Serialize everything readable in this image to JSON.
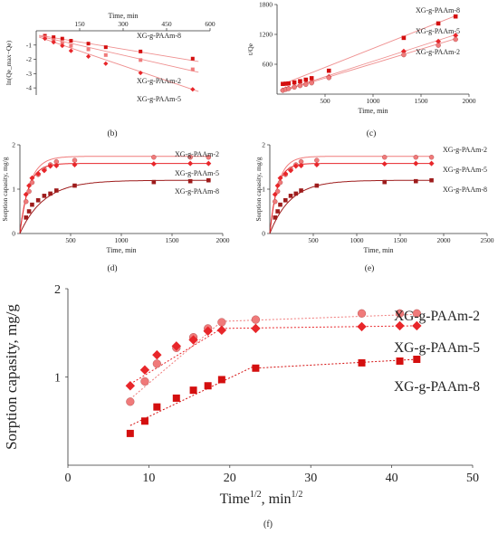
{
  "colors": {
    "s2": "#f07a7a",
    "s5": "#e8262a",
    "s8": "#d40f0f",
    "s8dark": "#9e1c1c",
    "fit": "#ef9090",
    "axis": "#333333"
  },
  "chart_data": [
    {
      "id": "b",
      "type": "scatter",
      "panel_label": "(b)",
      "xlabel": "Time, min",
      "ylabel": "ln(Qe_max−Qe)",
      "xlim": [
        0,
        600
      ],
      "ylim": [
        -4.5,
        0
      ],
      "xticks": [
        150,
        300,
        450,
        600
      ],
      "yticks": [
        -1,
        -2,
        -3,
        -4
      ],
      "x_axis_position": "top",
      "series": [
        {
          "name": "XG-g-PAAm-8",
          "marker": "square",
          "x": [
            30,
            60,
            90,
            120,
            180,
            240,
            360,
            540
          ],
          "y": [
            -0.35,
            -0.45,
            -0.55,
            -0.7,
            -0.9,
            -1.15,
            -1.45,
            -1.95
          ],
          "fit": [
            [
              10,
              -0.32
            ],
            [
              560,
              -2.15
            ]
          ]
        },
        {
          "name": "XG-g-PAAm-2",
          "marker": "square",
          "x": [
            30,
            60,
            90,
            120,
            180,
            240,
            360,
            540
          ],
          "y": [
            -0.45,
            -0.65,
            -0.85,
            -1.05,
            -1.3,
            -1.7,
            -2.05,
            -2.7
          ],
          "fit": [
            [
              10,
              -0.38
            ],
            [
              560,
              -2.9
            ]
          ]
        },
        {
          "name": "XG-g-PAAm-5",
          "marker": "diamond",
          "x": [
            30,
            60,
            90,
            120,
            180,
            240,
            360,
            540
          ],
          "y": [
            -0.55,
            -0.8,
            -1.05,
            -1.4,
            -1.8,
            -2.3,
            -2.95,
            -4.1
          ],
          "fit": [
            [
              10,
              -0.45
            ],
            [
              560,
              -4.25
            ]
          ]
        }
      ],
      "labels": [
        "XG-g-PAAm-8",
        "XG-g-PAAm-2",
        "XG-g-PAAm-5"
      ]
    },
    {
      "id": "c",
      "type": "scatter",
      "panel_label": "(c)",
      "xlabel": "Time, min",
      "ylabel": "t/Qe",
      "xlim": [
        0,
        2000
      ],
      "ylim": [
        0,
        1800
      ],
      "xticks": [
        500,
        1000,
        1500,
        2000
      ],
      "yticks": [
        600,
        1200,
        1800
      ],
      "series": [
        {
          "name": "XG-g-PAAm-8",
          "marker": "square",
          "x": [
            60,
            90,
            120,
            180,
            240,
            300,
            360,
            540,
            1320,
            1680,
            1860
          ],
          "y": [
            205,
            210,
            215,
            235,
            260,
            290,
            320,
            470,
            1130,
            1420,
            1560
          ],
          "fit": [
            [
              50,
              195
            ],
            [
              1870,
              1580
            ]
          ]
        },
        {
          "name": "XG-g-PAAm-5",
          "marker": "diamond",
          "x": [
            60,
            90,
            120,
            180,
            240,
            300,
            360,
            540,
            1320,
            1680,
            1860
          ],
          "y": [
            80,
            100,
            115,
            150,
            185,
            210,
            240,
            350,
            860,
            1060,
            1180
          ],
          "fit": [
            [
              50,
              70
            ],
            [
              1870,
              1200
            ]
          ]
        },
        {
          "name": "XG-g-PAAm-2",
          "marker": "circle",
          "x": [
            60,
            90,
            120,
            180,
            240,
            300,
            360,
            540,
            1320,
            1680,
            1860
          ],
          "y": [
            75,
            95,
            110,
            140,
            170,
            195,
            225,
            330,
            790,
            980,
            1100
          ],
          "fit": [
            [
              50,
              60
            ],
            [
              1870,
              1120
            ]
          ]
        }
      ],
      "labels": [
        "XG-g-PAAm-8",
        "XG-g-PAAm-5",
        "XG-g-PAAm-2"
      ]
    },
    {
      "id": "d",
      "type": "scatter",
      "panel_label": "(d)",
      "xlabel": "Time, min",
      "ylabel": "Sorption capasity, mg/g",
      "xlim": [
        0,
        2000
      ],
      "ylim": [
        0,
        2
      ],
      "xticks": [
        500,
        1000,
        1500,
        2000
      ],
      "yticks": [
        0,
        1,
        2
      ],
      "series": [
        {
          "name": "XG-g-PAAm-2",
          "marker": "circle",
          "x": [
            60,
            90,
            120,
            180,
            240,
            300,
            360,
            540,
            1320,
            1680,
            1860
          ],
          "y": [
            0.72,
            0.95,
            1.15,
            1.33,
            1.45,
            1.55,
            1.62,
            1.65,
            1.72,
            1.72,
            1.72
          ],
          "fit_k": 0.0105,
          "fit_max": 1.74
        },
        {
          "name": "XG-g-PAAm-5",
          "marker": "diamond",
          "x": [
            60,
            90,
            120,
            180,
            240,
            300,
            360,
            540,
            1320,
            1680,
            1860
          ],
          "y": [
            0.88,
            1.08,
            1.25,
            1.35,
            1.42,
            1.52,
            1.53,
            1.55,
            1.57,
            1.58,
            1.58
          ],
          "fit_k": 0.012,
          "fit_max": 1.58
        },
        {
          "name": "XG-g-PAAm-8",
          "marker": "square",
          "x": [
            60,
            90,
            120,
            180,
            240,
            300,
            360,
            540,
            1320,
            1680,
            1860
          ],
          "y": [
            0.36,
            0.5,
            0.65,
            0.75,
            0.85,
            0.9,
            0.97,
            1.08,
            1.16,
            1.18,
            1.2
          ],
          "fit_k": 0.0042,
          "fit_max": 1.2
        }
      ],
      "labels": [
        "XG-g-PAAm-2",
        "XG-g-PAAm-5",
        "XG-g-PAAm-8"
      ]
    },
    {
      "id": "e",
      "type": "scatter",
      "panel_label": "(e)",
      "xlabel": "Time, min",
      "ylabel": "Sorption capasity, mg/g",
      "xlim": [
        0,
        2500
      ],
      "ylim": [
        0,
        2
      ],
      "xticks": [
        500,
        1000,
        1500,
        2000,
        2500
      ],
      "yticks": [
        0,
        1,
        2
      ],
      "series": [
        {
          "name": "XG-g-PAAm-2",
          "marker": "circle",
          "x": [
            60,
            90,
            120,
            180,
            240,
            300,
            360,
            540,
            1320,
            1680,
            1860
          ],
          "y": [
            0.72,
            0.95,
            1.15,
            1.33,
            1.45,
            1.55,
            1.62,
            1.65,
            1.72,
            1.72,
            1.72
          ],
          "fit_k": 0.0105,
          "fit_max": 1.74
        },
        {
          "name": "XG-g-PAAm-5",
          "marker": "diamond",
          "x": [
            60,
            90,
            120,
            180,
            240,
            300,
            360,
            540,
            1320,
            1680,
            1860
          ],
          "y": [
            0.88,
            1.08,
            1.25,
            1.35,
            1.42,
            1.52,
            1.53,
            1.55,
            1.57,
            1.58,
            1.58
          ],
          "fit_k": 0.012,
          "fit_max": 1.58
        },
        {
          "name": "XG-g-PAAm-8",
          "marker": "square",
          "x": [
            60,
            90,
            120,
            180,
            240,
            300,
            360,
            540,
            1320,
            1680,
            1860
          ],
          "y": [
            0.36,
            0.5,
            0.65,
            0.75,
            0.85,
            0.9,
            0.97,
            1.08,
            1.16,
            1.18,
            1.2
          ],
          "fit_k": 0.0042,
          "fit_max": 1.2
        }
      ],
      "labels": [
        "XG-g-PAAm-2",
        "XG-g-PAAm-5",
        "XG-g-PAAm-8"
      ]
    },
    {
      "id": "f",
      "type": "scatter",
      "panel_label": "(f)",
      "xlabel": "Time",
      "xlabel_sup": "1/2",
      "xlabel_mid": ", min",
      "xlabel_sup2": "1/2",
      "ylabel": "Sorption capasity, mg/g",
      "xlim": [
        0,
        50
      ],
      "ylim": [
        0,
        2
      ],
      "xticks": [
        0,
        10,
        20,
        30,
        40,
        50
      ],
      "yticks": [
        1,
        2
      ],
      "series": [
        {
          "name": "XG-g-PAAm-2",
          "marker": "circle",
          "x": [
            7.7,
            9.5,
            11.0,
            13.4,
            15.5,
            17.3,
            19.0,
            23.2,
            36.3,
            41.0,
            43.1
          ],
          "y": [
            0.72,
            0.95,
            1.15,
            1.33,
            1.45,
            1.55,
            1.62,
            1.65,
            1.72,
            1.72,
            1.72
          ],
          "fit": [
            [
              [
                7.7,
                0.75
              ],
              [
                19.0,
                1.63
              ]
            ],
            [
              [
                19.0,
                1.63
              ],
              [
                43.1,
                1.71
              ]
            ]
          ]
        },
        {
          "name": "XG-g-PAAm-5",
          "marker": "diamond",
          "x": [
            7.7,
            9.5,
            11.0,
            13.4,
            15.5,
            17.3,
            19.0,
            23.2,
            36.3,
            41.0,
            43.1
          ],
          "y": [
            0.9,
            1.08,
            1.25,
            1.35,
            1.42,
            1.52,
            1.53,
            1.55,
            1.57,
            1.58,
            1.58
          ],
          "fit": [
            [
              [
                7.7,
                0.92
              ],
              [
                19.0,
                1.55
              ]
            ],
            [
              [
                19.0,
                1.55
              ],
              [
                43.1,
                1.58
              ]
            ]
          ]
        },
        {
          "name": "XG-g-PAAm-8",
          "marker": "square",
          "x": [
            7.7,
            9.5,
            11.0,
            13.4,
            15.5,
            17.3,
            19.0,
            23.2,
            36.3,
            41.0,
            43.1
          ],
          "y": [
            0.36,
            0.5,
            0.66,
            0.76,
            0.85,
            0.9,
            0.97,
            1.1,
            1.16,
            1.18,
            1.2
          ],
          "fit": [
            [
              [
                7.7,
                0.45
              ],
              [
                23.2,
                1.13
              ]
            ],
            [
              [
                23.2,
                1.1
              ],
              [
                43.1,
                1.2
              ]
            ]
          ]
        }
      ],
      "labels": [
        "XG-g-PAAm-2",
        "XG-g-PAAm-5",
        "XG-g-PAAm-8"
      ]
    }
  ]
}
